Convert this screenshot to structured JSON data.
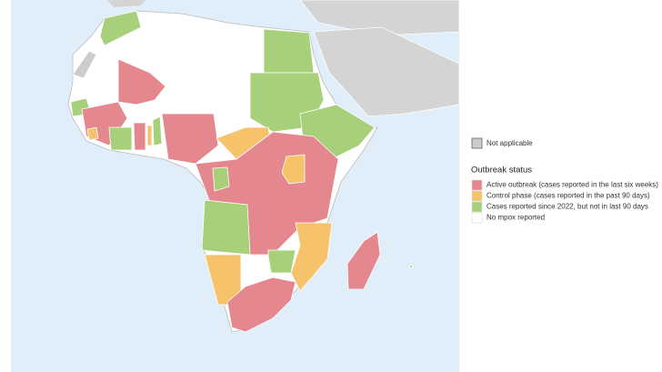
{
  "legend": {
    "not_applicable": {
      "label": "Not applicable",
      "color": "#cccccc"
    },
    "title": "Outbreak status",
    "items": [
      {
        "label": "Active outbreak (cases reported in the last six weeks)",
        "color": "#e5878f"
      },
      {
        "label": "Control phase (cases reported in the past 90 days)",
        "color": "#f6c36b"
      },
      {
        "label": "Cases reported since 2022, but not in last 90 days",
        "color": "#a8d07a"
      },
      {
        "label": "No mpox reported",
        "color": "#ffffff"
      }
    ]
  }
}
